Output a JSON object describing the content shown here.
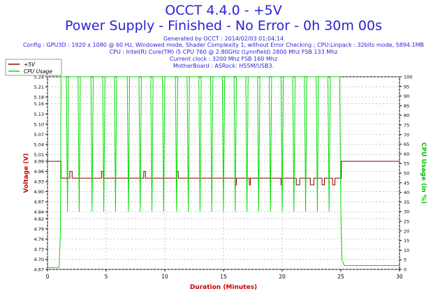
{
  "header": {
    "title": "OCCT 4.4.0 - +5V",
    "subtitle": "Power Supply - Finished - No Error - 0h 30m 00s",
    "generated": "Generated by OCCT : 2014/02/03 01:04:14",
    "config": "Config : GPU3D : 1920 x 1080 @ 60 Hz, Windowed mode, Shader Complexity 1, without Error Checking ; CPU:Linpack : 32bits mode, 5894.1MB",
    "cpu": "CPU : Intel(R) Core(TM) i5 CPU 760 @ 2.80GHz (Lynnfield) 2800 Mhz FSB 133 Mhz",
    "clock": "Current clock : 3200 Mhz FSB 160 Mhz",
    "motherboard": "MotherBoard : ASRock: H55M/USB3."
  },
  "chart_data": {
    "type": "line",
    "xlabel": "Duration (Minutes)",
    "ylabel_left": "Voltage (V)",
    "ylabel_right": "CPU Usage (in %)",
    "x_ticks": [
      0,
      5,
      10,
      15,
      20,
      25,
      30
    ],
    "y_left_ticks": [
      4.67,
      4.7,
      4.73,
      4.76,
      4.79,
      4.82,
      4.84,
      4.87,
      4.9,
      4.93,
      4.96,
      4.99,
      5.01,
      5.04,
      5.07,
      5.1,
      5.13,
      5.16,
      5.18,
      5.21,
      5.24
    ],
    "y_right_ticks": [
      0,
      5,
      10,
      15,
      20,
      25,
      30,
      35,
      40,
      45,
      50,
      55,
      60,
      65,
      70,
      75,
      80,
      85,
      90,
      95,
      100
    ],
    "xlim": [
      0,
      30
    ],
    "ylim_left": [
      4.67,
      5.24
    ],
    "ylim_right": [
      0,
      100
    ],
    "grid": true,
    "legend_position": "top-left",
    "series": [
      {
        "name": "+5V",
        "axis": "left",
        "color": "#8b0000",
        "points": [
          [
            0,
            4.99
          ],
          [
            1.15,
            4.99
          ],
          [
            1.15,
            4.94
          ],
          [
            1.9,
            4.94
          ],
          [
            1.9,
            4.96
          ],
          [
            2.1,
            4.96
          ],
          [
            2.1,
            4.94
          ],
          [
            4.6,
            4.94
          ],
          [
            4.6,
            4.96
          ],
          [
            4.75,
            4.96
          ],
          [
            4.75,
            4.94
          ],
          [
            8.2,
            4.94
          ],
          [
            8.2,
            4.96
          ],
          [
            8.35,
            4.96
          ],
          [
            8.35,
            4.94
          ],
          [
            11.0,
            4.94
          ],
          [
            11.0,
            4.96
          ],
          [
            11.15,
            4.96
          ],
          [
            11.15,
            4.94
          ],
          [
            16.0,
            4.94
          ],
          [
            16.0,
            4.92
          ],
          [
            16.1,
            4.92
          ],
          [
            16.1,
            4.94
          ],
          [
            17.2,
            4.94
          ],
          [
            17.2,
            4.92
          ],
          [
            17.3,
            4.92
          ],
          [
            17.3,
            4.94
          ],
          [
            19.9,
            4.94
          ],
          [
            19.9,
            4.92
          ],
          [
            20.0,
            4.92
          ],
          [
            20.0,
            4.94
          ],
          [
            21.2,
            4.94
          ],
          [
            21.2,
            4.92
          ],
          [
            21.5,
            4.92
          ],
          [
            21.5,
            4.94
          ],
          [
            22.4,
            4.94
          ],
          [
            22.4,
            4.92
          ],
          [
            22.7,
            4.92
          ],
          [
            22.7,
            4.94
          ],
          [
            23.4,
            4.94
          ],
          [
            23.4,
            4.92
          ],
          [
            23.6,
            4.92
          ],
          [
            23.6,
            4.94
          ],
          [
            24.3,
            4.94
          ],
          [
            24.3,
            4.92
          ],
          [
            24.5,
            4.92
          ],
          [
            24.5,
            4.94
          ],
          [
            25.05,
            4.94
          ],
          [
            25.05,
            4.99
          ],
          [
            30,
            4.99
          ]
        ]
      },
      {
        "name": "CPU Usage",
        "axis": "right",
        "color": "#00e000",
        "points": [
          [
            0,
            1
          ],
          [
            1.0,
            1
          ],
          [
            1.1,
            20
          ],
          [
            1.15,
            100
          ],
          [
            1.6,
            100
          ],
          [
            1.7,
            30
          ],
          [
            1.8,
            100
          ],
          [
            2.6,
            100
          ],
          [
            2.7,
            30
          ],
          [
            2.8,
            100
          ],
          [
            3.7,
            100
          ],
          [
            3.8,
            30
          ],
          [
            3.9,
            100
          ],
          [
            4.7,
            100
          ],
          [
            4.8,
            30
          ],
          [
            4.9,
            100
          ],
          [
            5.7,
            100
          ],
          [
            5.8,
            30
          ],
          [
            5.9,
            100
          ],
          [
            6.8,
            100
          ],
          [
            6.9,
            30
          ],
          [
            7.0,
            100
          ],
          [
            7.8,
            100
          ],
          [
            7.9,
            30
          ],
          [
            8.0,
            100
          ],
          [
            8.8,
            100
          ],
          [
            8.9,
            30
          ],
          [
            9.0,
            100
          ],
          [
            9.8,
            100
          ],
          [
            9.9,
            30
          ],
          [
            10.0,
            100
          ],
          [
            10.9,
            100
          ],
          [
            11.0,
            30
          ],
          [
            11.1,
            100
          ],
          [
            11.9,
            100
          ],
          [
            12.0,
            30
          ],
          [
            12.1,
            100
          ],
          [
            12.9,
            100
          ],
          [
            13.0,
            30
          ],
          [
            13.1,
            100
          ],
          [
            13.9,
            100
          ],
          [
            14.0,
            30
          ],
          [
            14.1,
            100
          ],
          [
            14.9,
            100
          ],
          [
            15.0,
            30
          ],
          [
            15.1,
            100
          ],
          [
            15.9,
            100
          ],
          [
            16.0,
            30
          ],
          [
            16.1,
            100
          ],
          [
            16.9,
            100
          ],
          [
            17.0,
            30
          ],
          [
            17.1,
            100
          ],
          [
            17.9,
            100
          ],
          [
            18.0,
            30
          ],
          [
            18.1,
            100
          ],
          [
            18.9,
            100
          ],
          [
            19.0,
            30
          ],
          [
            19.1,
            100
          ],
          [
            19.9,
            100
          ],
          [
            20.0,
            30
          ],
          [
            20.1,
            100
          ],
          [
            20.9,
            100
          ],
          [
            21.0,
            30
          ],
          [
            21.1,
            100
          ],
          [
            21.9,
            100
          ],
          [
            22.0,
            30
          ],
          [
            22.1,
            100
          ],
          [
            22.9,
            100
          ],
          [
            23.0,
            30
          ],
          [
            23.1,
            100
          ],
          [
            23.9,
            100
          ],
          [
            24.0,
            30
          ],
          [
            24.1,
            100
          ],
          [
            24.9,
            100
          ],
          [
            25.0,
            30
          ],
          [
            25.1,
            5
          ],
          [
            25.3,
            2
          ],
          [
            30,
            2
          ]
        ]
      }
    ]
  }
}
